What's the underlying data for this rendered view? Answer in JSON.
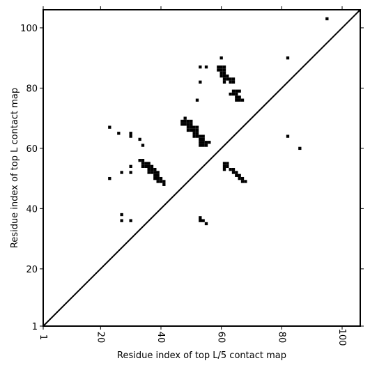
{
  "chart_data": {
    "type": "heatmap",
    "title": "",
    "xlabel": "Residue index of top L/5 contact map",
    "ylabel": "Residue index of top L contact map",
    "xlim": [
      1,
      106
    ],
    "ylim": [
      1,
      106
    ],
    "x_ticks": [
      1,
      20,
      40,
      60,
      80,
      100
    ],
    "y_ticks": [
      1,
      20,
      40,
      60,
      80,
      100
    ],
    "x_tick_labels": [
      "1",
      "20",
      "40",
      "60",
      "80",
      "100"
    ],
    "y_tick_labels": [
      "1",
      "20",
      "40",
      "60",
      "80",
      "100"
    ],
    "grid": false,
    "diagonal_line": true,
    "cell_color": "#000000",
    "contacts": [
      [
        95,
        103
      ],
      [
        82,
        90
      ],
      [
        82,
        64
      ],
      [
        86,
        60
      ],
      [
        23,
        67
      ],
      [
        23,
        50
      ],
      [
        26,
        65
      ],
      [
        27,
        52
      ],
      [
        27,
        38
      ],
      [
        27,
        36
      ],
      [
        30,
        65
      ],
      [
        30,
        64
      ],
      [
        30,
        54
      ],
      [
        30,
        52
      ],
      [
        30,
        36
      ],
      [
        33,
        63
      ],
      [
        34,
        61
      ],
      [
        33,
        56
      ],
      [
        34,
        56
      ],
      [
        34,
        55
      ],
      [
        35,
        55
      ],
      [
        36,
        55
      ],
      [
        34,
        54
      ],
      [
        35,
        54
      ],
      [
        36,
        54
      ],
      [
        37,
        54
      ],
      [
        36,
        53
      ],
      [
        37,
        53
      ],
      [
        38,
        53
      ],
      [
        36,
        52
      ],
      [
        37,
        52
      ],
      [
        38,
        52
      ],
      [
        39,
        52
      ],
      [
        38,
        51
      ],
      [
        39,
        51
      ],
      [
        38,
        50
      ],
      [
        39,
        50
      ],
      [
        40,
        50
      ],
      [
        39,
        49
      ],
      [
        40,
        49
      ],
      [
        41,
        49
      ],
      [
        41,
        48
      ],
      [
        48,
        70
      ],
      [
        47,
        69
      ],
      [
        48,
        69
      ],
      [
        49,
        69
      ],
      [
        50,
        69
      ],
      [
        47,
        68
      ],
      [
        48,
        68
      ],
      [
        49,
        68
      ],
      [
        50,
        68
      ],
      [
        49,
        67
      ],
      [
        50,
        67
      ],
      [
        51,
        67
      ],
      [
        52,
        67
      ],
      [
        49,
        66
      ],
      [
        50,
        66
      ],
      [
        51,
        66
      ],
      [
        52,
        66
      ],
      [
        51,
        65
      ],
      [
        52,
        65
      ],
      [
        51,
        64
      ],
      [
        52,
        64
      ],
      [
        53,
        64
      ],
      [
        54,
        64
      ],
      [
        53,
        63
      ],
      [
        54,
        63
      ],
      [
        53,
        62
      ],
      [
        54,
        62
      ],
      [
        55,
        62
      ],
      [
        56,
        62
      ],
      [
        53,
        61
      ],
      [
        54,
        61
      ],
      [
        55,
        61
      ],
      [
        52,
        76
      ],
      [
        53,
        87
      ],
      [
        55,
        87
      ],
      [
        53,
        82
      ],
      [
        53,
        37
      ],
      [
        53,
        36
      ],
      [
        54,
        36
      ],
      [
        55,
        35
      ],
      [
        60,
        90
      ],
      [
        59,
        87
      ],
      [
        60,
        87
      ],
      [
        61,
        87
      ],
      [
        59,
        86
      ],
      [
        60,
        86
      ],
      [
        61,
        86
      ],
      [
        60,
        85
      ],
      [
        61,
        85
      ],
      [
        60,
        84
      ],
      [
        61,
        84
      ],
      [
        62,
        84
      ],
      [
        61,
        83
      ],
      [
        62,
        83
      ],
      [
        61,
        82
      ],
      [
        63,
        83
      ],
      [
        64,
        83
      ],
      [
        63,
        82
      ],
      [
        64,
        82
      ],
      [
        63,
        78
      ],
      [
        64,
        78
      ],
      [
        64,
        79
      ],
      [
        65,
        79
      ],
      [
        66,
        79
      ],
      [
        65,
        78
      ],
      [
        65,
        77
      ],
      [
        66,
        77
      ],
      [
        65,
        76
      ],
      [
        66,
        76
      ],
      [
        67,
        76
      ],
      [
        61,
        55
      ],
      [
        62,
        55
      ],
      [
        61,
        54
      ],
      [
        62,
        54
      ],
      [
        61,
        53
      ],
      [
        63,
        53
      ],
      [
        64,
        53
      ],
      [
        64,
        52
      ],
      [
        65,
        52
      ],
      [
        65,
        51
      ],
      [
        66,
        51
      ],
      [
        66,
        50
      ],
      [
        67,
        50
      ],
      [
        67,
        49
      ],
      [
        68,
        49
      ]
    ]
  }
}
